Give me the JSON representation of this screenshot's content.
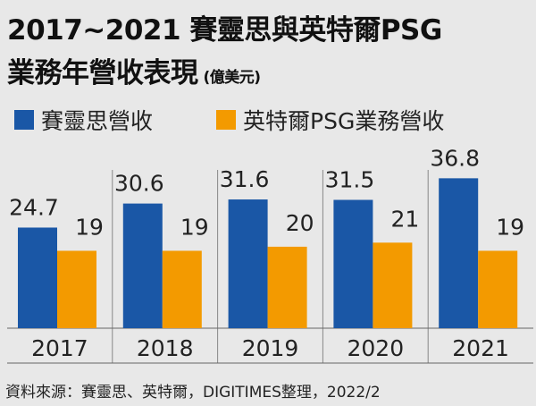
{
  "chart_data": {
    "type": "bar",
    "title": "2017~2021 賽靈思與英特爾PSG",
    "title2": "業務年營收表現",
    "unit": "(億美元)",
    "categories": [
      "2017",
      "2018",
      "2019",
      "2020",
      "2021"
    ],
    "series": [
      {
        "name": "賽靈思營收",
        "values": [
          24.7,
          30.6,
          31.6,
          31.5,
          36.8
        ]
      },
      {
        "name": "英特爾PSG業務營收",
        "values": [
          19,
          19,
          20,
          21,
          19
        ]
      }
    ],
    "value_labels": [
      [
        "24.7",
        "30.6",
        "31.6",
        "31.5",
        "36.8"
      ],
      [
        "19",
        "19",
        "20",
        "21",
        "19"
      ]
    ],
    "ylim": [
      0,
      45
    ],
    "grid": false,
    "legend_position": "top-left",
    "colors": [
      "#1a57a6",
      "#f39a00"
    ],
    "source": "資料來源：賽靈思、英特爾，DIGITIMES整理，2022/2"
  }
}
